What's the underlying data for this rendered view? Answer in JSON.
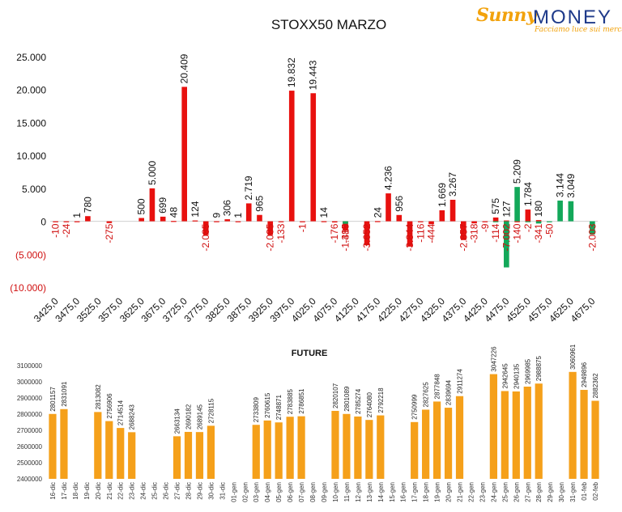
{
  "logo": {
    "word1": "Sunny",
    "word2": "MONEY",
    "tagline": "Facciamo luce sui mercati"
  },
  "chart_data": [
    {
      "type": "bar",
      "title": "STOXX50 MARZO",
      "categories": [
        "3425,0",
        "3450,0",
        "3475,0",
        "3500,0",
        "3525,0",
        "3550,0",
        "3575,0",
        "3600,0",
        "3625,0",
        "3650,0",
        "3675,0",
        "3700,0",
        "3725,0",
        "3750,0",
        "3775,0",
        "3800,0",
        "3825,0",
        "3850,0",
        "3875,0",
        "3900,0",
        "3925,0",
        "3950,0",
        "3975,0",
        "4000,0",
        "4025,0",
        "4050,0",
        "4075,0",
        "4100,0",
        "4125,0",
        "4150,0",
        "4175,0",
        "4200,0",
        "4225,0",
        "4250,0",
        "4275,0",
        "4300,0",
        "4325,0",
        "4350,0",
        "4375,0",
        "4400,0",
        "4425,0",
        "4450,0",
        "4475,0",
        "4500,0",
        "4525,0",
        "4550,0",
        "4575,0",
        "4600,0",
        "4625,0",
        "4650,0",
        "4675,0"
      ],
      "tick_labels": [
        "3425,0",
        "3475,0",
        "3525,0",
        "3575,0",
        "3625,0",
        "3675,0",
        "3725,0",
        "3775,0",
        "3825,0",
        "3875,0",
        "3925,0",
        "3975,0",
        "4025,0",
        "4075,0",
        "4125,0",
        "4175,0",
        "4225,0",
        "4275,0",
        "4325,0",
        "4375,0",
        "4425,0",
        "4475,0",
        "4525,0",
        "4575,0",
        "4625,0",
        "4675,0"
      ],
      "series": [
        {
          "color": "#e8110f",
          "values": [
            -10,
            -24,
            1,
            780,
            null,
            -275,
            null,
            null,
            500,
            5000,
            699,
            48,
            20409,
            124,
            -2085,
            9,
            306,
            1,
            2719,
            965,
            -2085,
            -133,
            19832,
            -1,
            19443,
            14,
            -176,
            -1419,
            null,
            -3652,
            24,
            4236,
            956,
            -3844,
            -116,
            -444,
            1669,
            3267,
            -2857,
            -318,
            -9,
            575,
            127,
            -140,
            1784,
            180,
            null,
            null,
            null,
            null,
            null
          ]
        },
        {
          "color": "#13a85a",
          "values": [
            null,
            null,
            null,
            null,
            null,
            null,
            null,
            null,
            null,
            null,
            null,
            null,
            null,
            null,
            null,
            null,
            null,
            null,
            null,
            null,
            null,
            null,
            null,
            null,
            null,
            null,
            null,
            -385,
            null,
            null,
            null,
            null,
            null,
            null,
            null,
            null,
            null,
            null,
            null,
            null,
            null,
            -114,
            -7002,
            5209,
            -2,
            -341,
            -50,
            3144,
            3049,
            null,
            -2003
          ]
        }
      ],
      "yticks": [
        "25.000",
        "20.000",
        "15.000",
        "10.000",
        "5.000",
        "0",
        "(5.000)",
        "(10.000)"
      ],
      "ylim": [
        -10000,
        25000
      ]
    },
    {
      "type": "bar",
      "title": "FUTURE",
      "color": "#f5a01a",
      "categories": [
        "16-dic",
        "17-dic",
        "18-dic",
        "19-dic",
        "20-dic",
        "21-dic",
        "22-dic",
        "23-dic",
        "24-dic",
        "25-dic",
        "26-dic",
        "27-dic",
        "28-dic",
        "29-dic",
        "30-dic",
        "31-dic",
        "01-gen",
        "02-gen",
        "03-gen",
        "04-gen",
        "05-gen",
        "06-gen",
        "07-gen",
        "08-gen",
        "09-gen",
        "10-gen",
        "11-gen",
        "12-gen",
        "13-gen",
        "14-gen",
        "15-gen",
        "16-gen",
        "17-gen",
        "18-gen",
        "19-gen",
        "20-gen",
        "21-gen",
        "22-gen",
        "23-gen",
        "24-gen",
        "25-gen",
        "26-gen",
        "27-gen",
        "28-gen",
        "29-gen",
        "30-gen",
        "31-gen",
        "01-feb",
        "02-feb"
      ],
      "values": [
        2801157,
        2831091,
        null,
        null,
        2813082,
        2756906,
        2714514,
        2688243,
        null,
        null,
        null,
        2663134,
        2690182,
        2689145,
        2728115,
        null,
        null,
        null,
        2733809,
        2760615,
        2748871,
        2783885,
        2786851,
        null,
        null,
        2820107,
        2801089,
        2785274,
        2764080,
        2792218,
        null,
        null,
        2750999,
        2827625,
        2877848,
        2839694,
        2911274,
        null,
        null,
        3047226,
        2942645,
        2940135,
        2969985,
        2988875,
        null,
        null,
        3060961,
        2949896,
        2882362
      ],
      "yticks": [
        "3100000",
        "3000000",
        "2900000",
        "2800000",
        "2700000",
        "2600000",
        "2500000",
        "2400000"
      ],
      "ylim": [
        2400000,
        3100000
      ]
    }
  ]
}
